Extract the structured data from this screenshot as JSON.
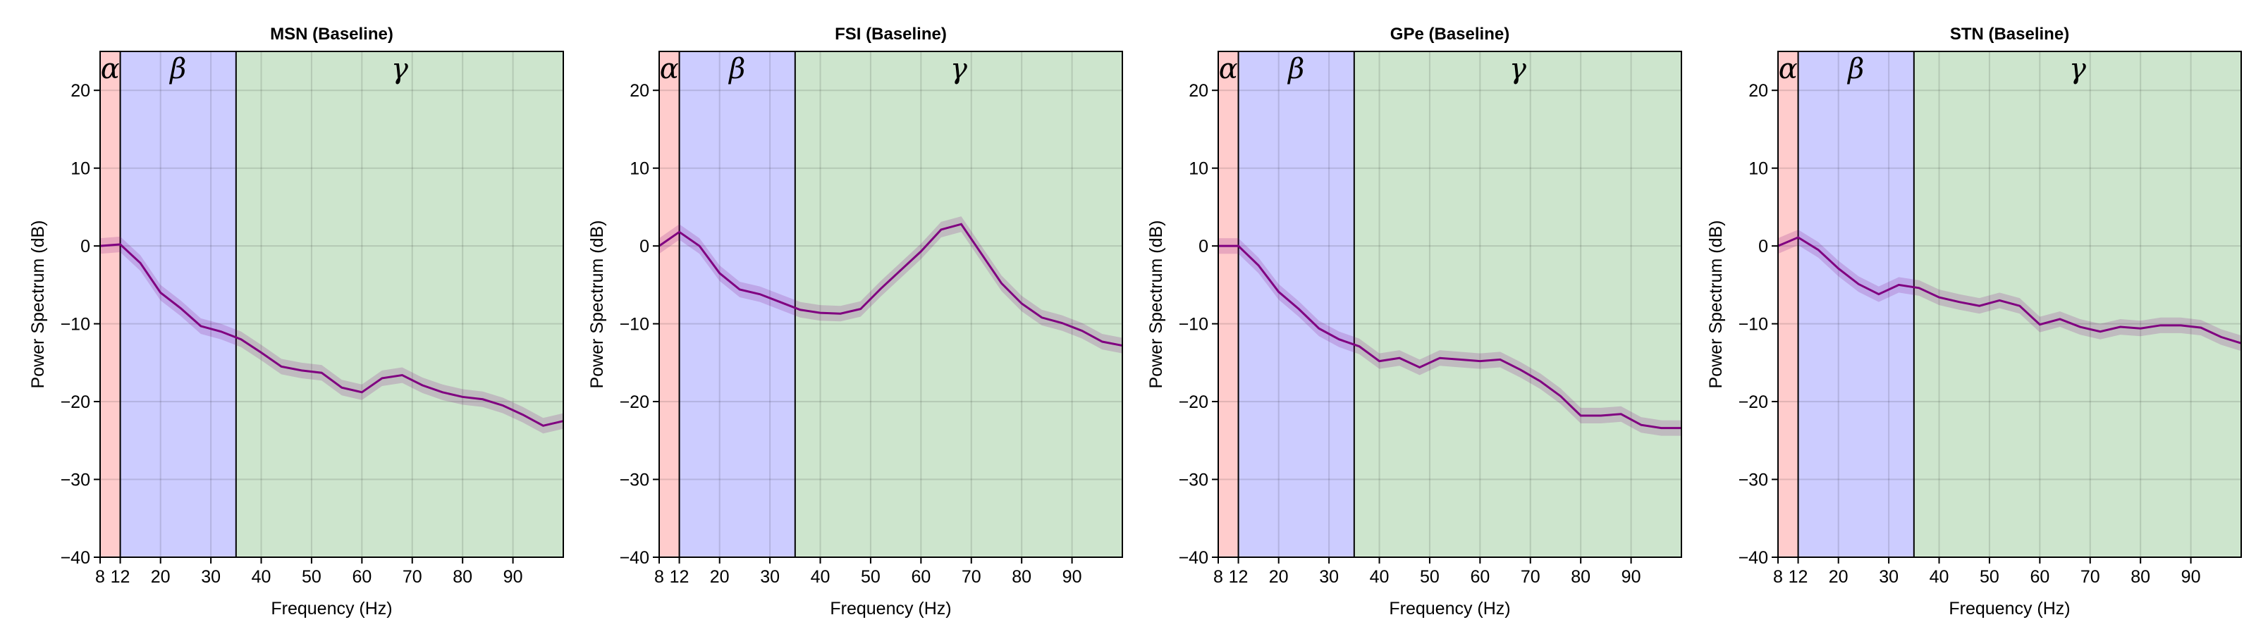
{
  "chart_data": [
    {
      "type": "line",
      "title": "MSN (Baseline)",
      "xlabel": "Frequency (Hz)",
      "ylabel": "Power Spectrum (dB)",
      "xlim": [
        8,
        100
      ],
      "ylim": [
        -40,
        25
      ],
      "grid": true,
      "xticks": [
        8,
        12,
        20,
        30,
        40,
        50,
        60,
        70,
        80,
        90
      ],
      "yticks": [
        -40,
        -30,
        -20,
        -10,
        0,
        10,
        20
      ],
      "bands": [
        {
          "label": "α",
          "range": [
            8,
            12
          ],
          "color": "#ffcccc"
        },
        {
          "label": "β",
          "range": [
            12,
            35
          ],
          "color": "#ccccff"
        },
        {
          "label": "γ",
          "range": [
            35,
            100
          ],
          "color": "#cde5cd"
        }
      ],
      "line_color": "#800080",
      "x": [
        8,
        12,
        16,
        20,
        24,
        28,
        32,
        36,
        40,
        44,
        48,
        52,
        56,
        60,
        64,
        68,
        72,
        76,
        80,
        84,
        88,
        92,
        96,
        100
      ],
      "y": [
        0,
        0.2,
        -2.2,
        -6,
        -8,
        -10.3,
        -11,
        -12,
        -13.7,
        -15.5,
        -16,
        -16.3,
        -18.2,
        -18.8,
        -17,
        -16.6,
        -17.9,
        -18.8,
        -19.4,
        -19.7,
        -20.5,
        -21.7,
        -23.1,
        -22.5
      ],
      "error": 1.0
    },
    {
      "type": "line",
      "title": "FSI (Baseline)",
      "xlabel": "Frequency (Hz)",
      "ylabel": "Power Spectrum (dB)",
      "xlim": [
        8,
        100
      ],
      "ylim": [
        -40,
        25
      ],
      "grid": true,
      "xticks": [
        8,
        12,
        20,
        30,
        40,
        50,
        60,
        70,
        80,
        90
      ],
      "yticks": [
        -40,
        -30,
        -20,
        -10,
        0,
        10,
        20
      ],
      "bands": [
        {
          "label": "α",
          "range": [
            8,
            12
          ],
          "color": "#ffcccc"
        },
        {
          "label": "β",
          "range": [
            12,
            35
          ],
          "color": "#ccccff"
        },
        {
          "label": "γ",
          "range": [
            35,
            100
          ],
          "color": "#cde5cd"
        }
      ],
      "line_color": "#800080",
      "x": [
        8,
        12,
        16,
        20,
        24,
        28,
        32,
        36,
        40,
        44,
        48,
        52,
        56,
        60,
        64,
        68,
        72,
        76,
        80,
        84,
        88,
        92,
        96,
        100
      ],
      "y": [
        0,
        1.8,
        0,
        -3.5,
        -5.6,
        -6.2,
        -7.2,
        -8.2,
        -8.6,
        -8.7,
        -8.1,
        -5.5,
        -3.1,
        -0.7,
        2.1,
        2.8,
        -1,
        -4.8,
        -7.4,
        -9.2,
        -9.9,
        -10.9,
        -12.3,
        -12.8
      ],
      "error": 1.0
    },
    {
      "type": "line",
      "title": "GPe (Baseline)",
      "xlabel": "Frequency (Hz)",
      "ylabel": "Power Spectrum (dB)",
      "xlim": [
        8,
        100
      ],
      "ylim": [
        -40,
        25
      ],
      "grid": true,
      "xticks": [
        8,
        12,
        20,
        30,
        40,
        50,
        60,
        70,
        80,
        90
      ],
      "yticks": [
        -40,
        -30,
        -20,
        -10,
        0,
        10,
        20
      ],
      "bands": [
        {
          "label": "α",
          "range": [
            8,
            12
          ],
          "color": "#ffcccc"
        },
        {
          "label": "β",
          "range": [
            12,
            35
          ],
          "color": "#ccccff"
        },
        {
          "label": "γ",
          "range": [
            35,
            100
          ],
          "color": "#cde5cd"
        }
      ],
      "line_color": "#800080",
      "x": [
        8,
        12,
        16,
        20,
        24,
        28,
        32,
        36,
        40,
        44,
        48,
        52,
        56,
        60,
        64,
        68,
        72,
        76,
        80,
        84,
        88,
        92,
        96,
        100
      ],
      "y": [
        0,
        0,
        -2.5,
        -5.9,
        -8.1,
        -10.6,
        -12,
        -12.9,
        -14.8,
        -14.4,
        -15.6,
        -14.4,
        -14.6,
        -14.8,
        -14.6,
        -15.9,
        -17.4,
        -19.3,
        -21.8,
        -21.8,
        -21.6,
        -23,
        -23.4,
        -23.4
      ],
      "error": 1.0
    },
    {
      "type": "line",
      "title": "STN (Baseline)",
      "xlabel": "Frequency (Hz)",
      "ylabel": "Power Spectrum (dB)",
      "xlim": [
        8,
        100
      ],
      "ylim": [
        -40,
        25
      ],
      "grid": true,
      "xticks": [
        8,
        12,
        20,
        30,
        40,
        50,
        60,
        70,
        80,
        90
      ],
      "yticks": [
        -40,
        -30,
        -20,
        -10,
        0,
        10,
        20
      ],
      "bands": [
        {
          "label": "α",
          "range": [
            8,
            12
          ],
          "color": "#ffcccc"
        },
        {
          "label": "β",
          "range": [
            12,
            35
          ],
          "color": "#ccccff"
        },
        {
          "label": "γ",
          "range": [
            35,
            100
          ],
          "color": "#cde5cd"
        }
      ],
      "line_color": "#800080",
      "x": [
        8,
        12,
        16,
        20,
        24,
        28,
        32,
        36,
        40,
        44,
        48,
        52,
        56,
        60,
        64,
        68,
        72,
        76,
        80,
        84,
        88,
        92,
        96,
        100
      ],
      "y": [
        0,
        1.1,
        -0.5,
        -2.9,
        -4.9,
        -6.2,
        -5,
        -5.4,
        -6.6,
        -7.2,
        -7.7,
        -7,
        -7.7,
        -10.1,
        -9.4,
        -10.4,
        -11,
        -10.4,
        -10.6,
        -10.2,
        -10.2,
        -10.5,
        -11.7,
        -12.5
      ],
      "error": 1.0
    }
  ]
}
